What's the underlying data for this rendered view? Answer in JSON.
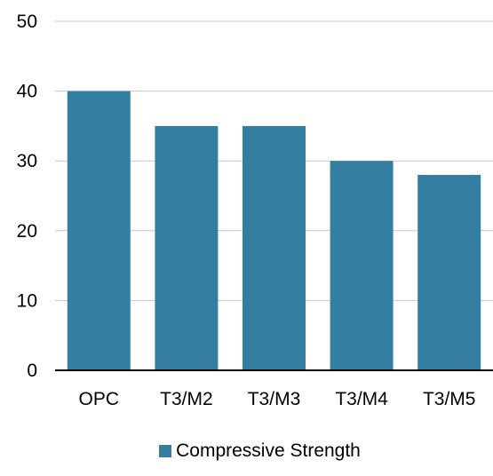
{
  "chart_data": {
    "type": "bar",
    "categories": [
      "OPC",
      "T3/M2",
      "T3/M3",
      "T3/M4",
      "T3/M5"
    ],
    "series": [
      {
        "name": "Compressive Strength",
        "values": [
          40,
          35,
          35,
          30,
          28
        ],
        "color": "#347fa1"
      }
    ],
    "ylim": [
      0,
      50
    ],
    "yticks": [
      0,
      10,
      20,
      30,
      40,
      50
    ],
    "grid": true,
    "legend_position": "bottom"
  }
}
